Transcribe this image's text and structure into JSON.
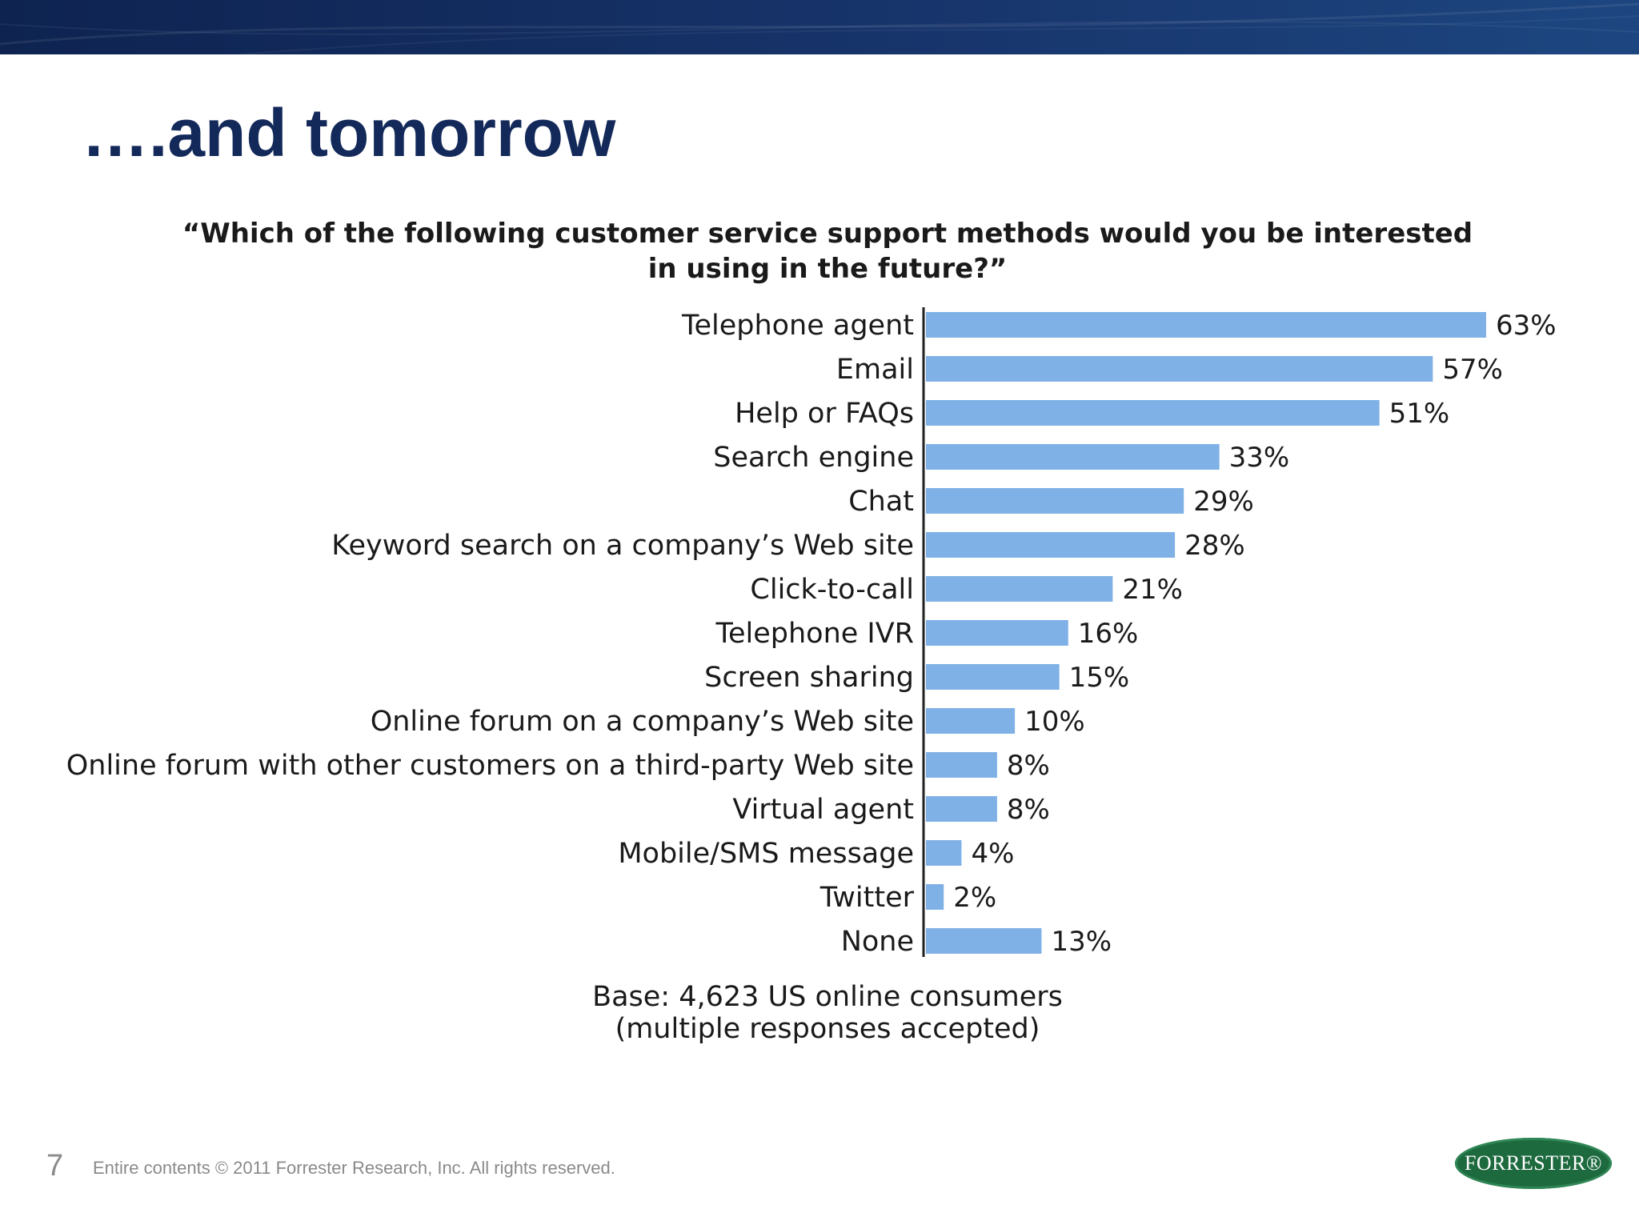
{
  "slide": {
    "title": "….and tomorrow",
    "page_number": "7",
    "copyright": "Entire contents © 2011 Forrester Research, Inc. All rights reserved.",
    "logo_text": "FORRESTER®",
    "colors": {
      "band": "#13295a",
      "bar": "#7fb0e6",
      "title": "#13295a",
      "logo": "#1e6a3f"
    }
  },
  "chart_data": {
    "type": "bar",
    "orientation": "horizontal",
    "title_lines": [
      "“Which of the following customer service support methods would you be interested",
      "in using in the future?”"
    ],
    "categories": [
      "Telephone agent",
      "Email",
      "Help or FAQs",
      "Search engine",
      "Chat",
      "Keyword search on a company’s Web site",
      "Click-to-call",
      "Telephone IVR",
      "Screen sharing",
      "Online forum on a company’s Web site",
      "Online forum with other customers on a third-party Web site",
      "Virtual agent",
      "Mobile/SMS message",
      "Twitter",
      "None"
    ],
    "values": [
      63,
      57,
      51,
      33,
      29,
      28,
      21,
      16,
      15,
      10,
      8,
      8,
      4,
      2,
      13
    ],
    "value_labels": [
      "63%",
      "57%",
      "51%",
      "33%",
      "29%",
      "28%",
      "21%",
      "16%",
      "15%",
      "10%",
      "8%",
      "8%",
      "4%",
      "2%",
      "13%"
    ],
    "unit": "%",
    "xlim": [
      0,
      63
    ],
    "grid": false,
    "note_lines": [
      "Base: 4,623 US online consumers",
      "(multiple responses accepted)"
    ]
  }
}
